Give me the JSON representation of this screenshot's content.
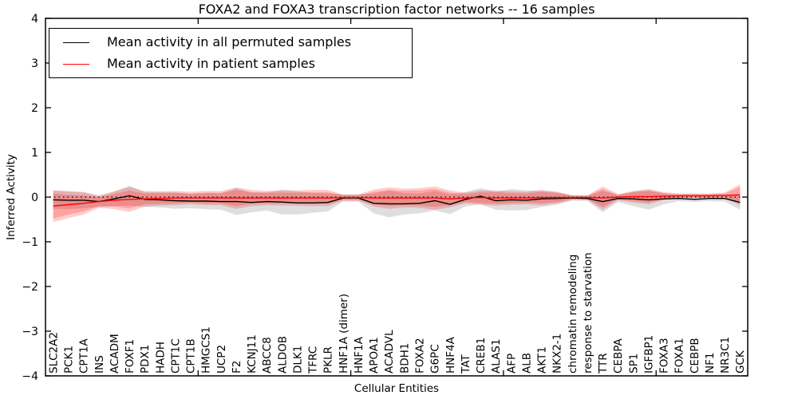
{
  "chart_data": {
    "type": "line",
    "title": "FOXA2 and FOXA3 transcription factor networks -- 16 samples",
    "xlabel": "Cellular Entities",
    "ylabel": "Inferred Activity",
    "ylim": [
      -4,
      4
    ],
    "yticks": [
      4,
      3,
      2,
      1,
      0,
      -1,
      -2,
      -3,
      -4
    ],
    "xticks_data_positions": [
      10,
      20,
      30,
      40
    ],
    "grid": false,
    "legend_position": "upper left",
    "zero_line": {
      "y": 0,
      "style": "dotted",
      "color": "#000000"
    },
    "categories": [
      "SLC2A2",
      "PCK1",
      "CPT1A",
      "INS",
      "ACADM",
      "FOXF1",
      "PDX1",
      "HADH",
      "CPT1C",
      "CPT1B",
      "HMGCS1",
      "UCP2",
      "F2",
      "KCNJ11",
      "ABCC8",
      "ALDOB",
      "DLK1",
      "TFRC",
      "PKLR",
      "HNF1A (dimer)",
      "HNF1A",
      "APOA1",
      "ACADVL",
      "BDH1",
      "FOXA2",
      "G6PC",
      "HNF4A",
      "TAT",
      "CREB1",
      "ALAS1",
      "AFP",
      "ALB",
      "AKT1",
      "NKX2-1",
      "chromatin remodeling",
      "response to starvation",
      "TTR",
      "CEBPA",
      "SP1",
      "IGFBP1",
      "FOXA3",
      "FOXA1",
      "CEBPB",
      "NF1",
      "NR3C1",
      "GCK"
    ],
    "series": [
      {
        "name": "Mean activity in all permuted samples",
        "color": "#000000",
        "values": [
          -0.06,
          -0.07,
          -0.07,
          -0.1,
          -0.04,
          0.03,
          -0.05,
          -0.06,
          -0.08,
          -0.09,
          -0.09,
          -0.1,
          -0.1,
          -0.12,
          -0.1,
          -0.11,
          -0.13,
          -0.13,
          -0.12,
          -0.02,
          -0.02,
          -0.14,
          -0.15,
          -0.15,
          -0.14,
          -0.08,
          -0.16,
          -0.05,
          0.02,
          -0.08,
          -0.06,
          -0.07,
          -0.04,
          -0.03,
          -0.02,
          -0.03,
          -0.1,
          -0.03,
          -0.04,
          -0.06,
          -0.04,
          -0.03,
          -0.05,
          -0.03,
          -0.03,
          -0.12
        ]
      },
      {
        "name": "Mean activity in patient samples",
        "color": "#ff0000",
        "values": [
          -0.2,
          -0.17,
          -0.14,
          -0.1,
          -0.07,
          -0.05,
          -0.04,
          -0.03,
          -0.02,
          -0.02,
          -0.02,
          -0.02,
          -0.02,
          -0.02,
          -0.02,
          -0.02,
          -0.02,
          -0.02,
          -0.02,
          -0.01,
          -0.01,
          -0.02,
          -0.02,
          -0.02,
          -0.02,
          -0.02,
          -0.04,
          -0.02,
          -0.01,
          -0.02,
          -0.02,
          -0.02,
          -0.01,
          -0.01,
          -0.01,
          -0.01,
          -0.02,
          0.0,
          0.01,
          0.01,
          0.02,
          0.03,
          0.03,
          0.03,
          0.04,
          0.05
        ]
      }
    ],
    "bands": [
      {
        "name": "permuted-samples-spread",
        "series": 0,
        "color": "#999999",
        "opacity": 0.32,
        "halfwidths": [
          0.2,
          0.2,
          0.18,
          0.12,
          0.16,
          0.22,
          0.17,
          0.17,
          0.18,
          0.16,
          0.18,
          0.18,
          0.3,
          0.22,
          0.2,
          0.28,
          0.26,
          0.22,
          0.2,
          0.08,
          0.08,
          0.22,
          0.3,
          0.24,
          0.22,
          0.22,
          0.22,
          0.16,
          0.18,
          0.2,
          0.24,
          0.22,
          0.18,
          0.14,
          0.06,
          0.06,
          0.24,
          0.08,
          0.16,
          0.22,
          0.12,
          0.06,
          0.06,
          0.06,
          0.07,
          0.16
        ]
      },
      {
        "name": "patient-samples-spread-outer",
        "series": 1,
        "color": "#ff0000",
        "opacity": 0.2,
        "halfwidths": [
          0.36,
          0.3,
          0.25,
          0.14,
          0.2,
          0.28,
          0.17,
          0.16,
          0.16,
          0.14,
          0.16,
          0.16,
          0.24,
          0.18,
          0.16,
          0.17,
          0.17,
          0.18,
          0.18,
          0.07,
          0.07,
          0.19,
          0.24,
          0.21,
          0.22,
          0.26,
          0.19,
          0.12,
          0.16,
          0.17,
          0.15,
          0.14,
          0.17,
          0.13,
          0.05,
          0.05,
          0.26,
          0.07,
          0.13,
          0.17,
          0.09,
          0.05,
          0.05,
          0.05,
          0.06,
          0.24
        ]
      },
      {
        "name": "patient-samples-spread-inner",
        "series": 1,
        "color": "#ff0000",
        "opacity": 0.2,
        "halfwidths": [
          0.28,
          0.22,
          0.18,
          0.1,
          0.14,
          0.2,
          0.12,
          0.12,
          0.12,
          0.1,
          0.12,
          0.12,
          0.18,
          0.13,
          0.12,
          0.12,
          0.12,
          0.13,
          0.13,
          0.05,
          0.05,
          0.14,
          0.18,
          0.16,
          0.17,
          0.2,
          0.14,
          0.09,
          0.12,
          0.13,
          0.11,
          0.1,
          0.13,
          0.1,
          0.04,
          0.04,
          0.2,
          0.05,
          0.1,
          0.13,
          0.07,
          0.04,
          0.04,
          0.04,
          0.04,
          0.18
        ]
      }
    ]
  }
}
